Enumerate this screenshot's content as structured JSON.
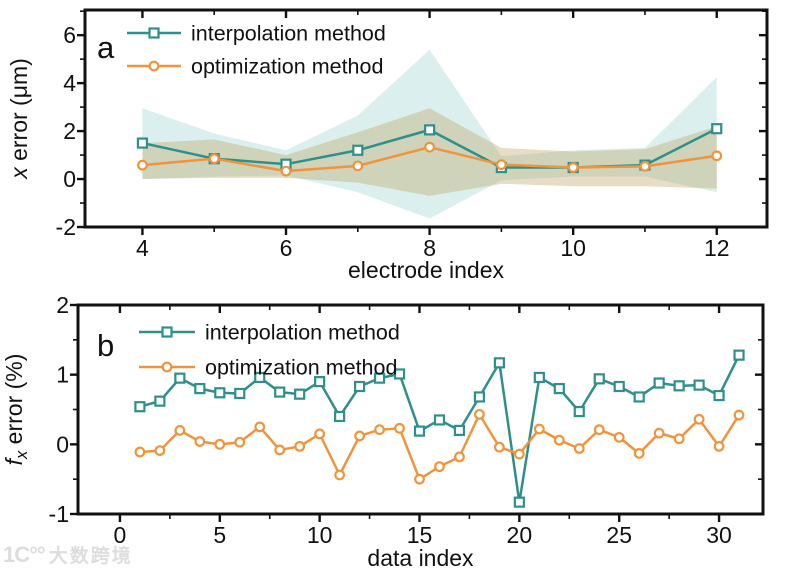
{
  "watermark": {
    "icon": "1C°°",
    "label": "大数跨境"
  },
  "colors": {
    "interpolation": "#2E8F8B",
    "optimization": "#F0943C",
    "interpolation_band": "rgba(77,182,172,0.20)",
    "optimization_band": "rgba(182,152,82,0.33)",
    "axis": "#111111",
    "marker_fill": "#ffffff"
  },
  "chart_data": [
    {
      "panel_label": "a",
      "type": "line",
      "xlabel": "electrode index",
      "ylabel_parts": [
        {
          "text": "x",
          "italic": true
        },
        {
          "text": " error (μm)"
        }
      ],
      "xlim": [
        3.2,
        12.7
      ],
      "ylim": [
        -2,
        7.05
      ],
      "xticks": {
        "major": [
          4,
          6,
          8,
          10,
          12
        ],
        "major_labels": [
          "4",
          "6",
          "8",
          "10",
          "12"
        ],
        "minor": [
          5,
          7,
          9,
          11
        ]
      },
      "yticks": {
        "major": [
          -2,
          0,
          2,
          4,
          6
        ],
        "major_labels": [
          "-2",
          "0",
          "2",
          "4",
          "6"
        ],
        "minor": [
          -1,
          1,
          3,
          5,
          7
        ]
      },
      "x": [
        4,
        5,
        6,
        7,
        8,
        9,
        10,
        11,
        12
      ],
      "series": [
        {
          "name": "interpolation method",
          "marker": "square",
          "color_key": "interpolation",
          "band_key": "interpolation_band",
          "values": [
            1.5,
            0.85,
            0.62,
            1.2,
            2.05,
            0.48,
            0.48,
            0.58,
            2.1
          ],
          "band_upper": [
            2.95,
            1.9,
            1.2,
            2.65,
            5.4,
            0.95,
            1.2,
            1.3,
            4.25
          ],
          "band_lower": [
            0.0,
            0.1,
            0.15,
            -0.55,
            -1.65,
            -0.05,
            0.1,
            0.1,
            -0.55
          ]
        },
        {
          "name": "optimization method",
          "marker": "circle",
          "color_key": "optimization",
          "band_key": "optimization_band",
          "values": [
            0.58,
            0.85,
            0.33,
            0.55,
            1.33,
            0.6,
            0.48,
            0.53,
            0.97
          ],
          "band_upper": [
            1.5,
            1.65,
            1.0,
            1.95,
            2.95,
            1.3,
            1.15,
            1.25,
            2.2
          ],
          "band_lower": [
            0.0,
            0.05,
            0.05,
            -0.15,
            -0.7,
            -0.2,
            -0.3,
            -0.3,
            -0.4
          ]
        }
      ],
      "legend": [
        "interpolation method",
        "optimization method"
      ]
    },
    {
      "panel_label": "b",
      "type": "line",
      "xlabel": "data index",
      "ylabel_parts": [
        {
          "text": "f",
          "italic": true
        },
        {
          "text": "x",
          "italic": true,
          "sub": true
        },
        {
          "text": " error (%)"
        }
      ],
      "xlim": [
        -2.1,
        32.2
      ],
      "ylim": [
        -1,
        2
      ],
      "xticks": {
        "major": [
          0,
          5,
          10,
          15,
          20,
          25,
          30
        ],
        "major_labels": [
          "0",
          "5",
          "10",
          "15",
          "20",
          "25",
          "30"
        ],
        "minor": [
          2.5,
          7.5,
          12.5,
          17.5,
          22.5,
          27.5
        ]
      },
      "yticks": {
        "major": [
          -1,
          0,
          1,
          2
        ],
        "major_labels": [
          "-1",
          "0",
          "1",
          "2"
        ],
        "minor": [
          -0.5,
          0.5,
          1.5
        ]
      },
      "x": [
        1,
        2,
        3,
        4,
        5,
        6,
        7,
        8,
        9,
        10,
        11,
        12,
        13,
        14,
        15,
        16,
        17,
        18,
        19,
        20,
        21,
        22,
        23,
        24,
        25,
        26,
        27,
        28,
        29,
        30,
        31
      ],
      "series": [
        {
          "name": "interpolation method",
          "marker": "square",
          "color_key": "interpolation",
          "values": [
            0.54,
            0.62,
            0.95,
            0.8,
            0.74,
            0.73,
            0.96,
            0.75,
            0.72,
            0.9,
            0.4,
            0.83,
            0.95,
            1.01,
            0.19,
            0.35,
            0.2,
            0.68,
            1.17,
            -0.83,
            0.96,
            0.8,
            0.47,
            0.94,
            0.83,
            0.68,
            0.88,
            0.84,
            0.85,
            0.7,
            1.28
          ]
        },
        {
          "name": "optimization method",
          "marker": "circle",
          "color_key": "optimization",
          "values": [
            -0.11,
            -0.09,
            0.2,
            0.04,
            0.0,
            0.03,
            0.25,
            -0.08,
            -0.03,
            0.15,
            -0.44,
            0.12,
            0.21,
            0.23,
            -0.5,
            -0.32,
            -0.18,
            0.43,
            -0.04,
            -0.14,
            0.22,
            0.06,
            -0.06,
            0.21,
            0.1,
            -0.13,
            0.16,
            0.08,
            0.36,
            -0.03,
            0.42
          ]
        }
      ],
      "legend": [
        "interpolation method",
        "optimization method"
      ]
    }
  ]
}
